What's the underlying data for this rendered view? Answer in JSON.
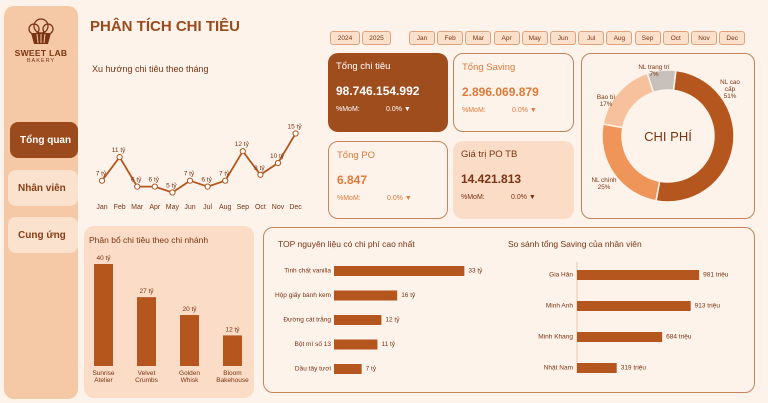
{
  "brand": {
    "name": "SWEET LAB",
    "sub": "BAKERY"
  },
  "nav": [
    {
      "label": "Tổng quan",
      "active": true
    },
    {
      "label": "Nhân viên",
      "active": false
    },
    {
      "label": "Cung ứng",
      "active": false
    }
  ],
  "page_title": "PHÂN TÍCH CHI TIÊU",
  "years": [
    "2024",
    "2025"
  ],
  "months": [
    "Jan",
    "Feb",
    "Mar",
    "Apr",
    "May",
    "Jun",
    "Jul",
    "Aug",
    "Sep",
    "Oct",
    "Nov",
    "Dec"
  ],
  "kpis": {
    "total_spend": {
      "label": "Tổng chi tiêu",
      "value": "98.746.154.992",
      "mom_label": "%MoM:",
      "mom_value": "0.0% ▼"
    },
    "total_saving": {
      "label": "Tổng Saving",
      "value": "2.896.069.879",
      "mom_label": "%MoM:",
      "mom_value": "0.0% ▼"
    },
    "total_po": {
      "label": "Tổng PO",
      "value": "6.847",
      "mom_label": "%MoM:",
      "mom_value": "0.0% ▼"
    },
    "avg_po": {
      "label": "Giá trị PO TB",
      "value": "14.421.813",
      "mom_label": "%MoM:",
      "mom_value": "0.0% ▼"
    }
  },
  "colors": {
    "accent": "#9a4a1c",
    "sidebar": "#f6c9a6",
    "bar": "#b5561e",
    "line": "#b5561e",
    "donut_dark": "#b5561e",
    "donut_mid": "#f0955a",
    "donut_light": "#f6c19c",
    "donut_grey": "#c8c0ba"
  },
  "chart_data": [
    {
      "type": "line",
      "title": "Xu hướng chi tiêu theo tháng",
      "categories": [
        "Jan",
        "Feb",
        "Mar",
        "Apr",
        "May",
        "Jun",
        "Jul",
        "Aug",
        "Sep",
        "Oct",
        "Nov",
        "Dec"
      ],
      "values": [
        7,
        11,
        6,
        6,
        5,
        7,
        6,
        7,
        12,
        8,
        10,
        15
      ],
      "labels": [
        "7 tỷ",
        "11 tỷ",
        "6 tỷ",
        "6 tỷ",
        "5 tỷ",
        "7 tỷ",
        "6 tỷ",
        "7 tỷ",
        "12 tỷ",
        "8 tỷ",
        "10 tỷ",
        "15 tỷ"
      ]
    },
    {
      "type": "pie",
      "title": "CHI PHÍ",
      "slices": [
        {
          "name": "NL cao cấp",
          "value": 51,
          "label": "51%"
        },
        {
          "name": "NL chính",
          "value": 25,
          "label": "25%"
        },
        {
          "name": "Bao bì",
          "value": 17,
          "label": "17%"
        },
        {
          "name": "NL trang trí",
          "value": 7,
          "label": "7%"
        }
      ]
    },
    {
      "type": "bar",
      "title": "Phân bổ chi tiêu theo chi nhánh",
      "categories": [
        "Sunrise Atelier",
        "Velvet Crumbs",
        "Golden Whisk",
        "Bloom Bakehouse"
      ],
      "values": [
        40,
        27,
        20,
        12
      ],
      "labels": [
        "40 tỷ",
        "27 tỷ",
        "20 tỷ",
        "12 tỷ"
      ]
    },
    {
      "type": "bar",
      "orientation": "horizontal",
      "title": "TOP nguyên liệu có chi phí cao nhất",
      "categories": [
        "Tinh chất vanilla",
        "Hộp giấy bánh kem",
        "Đường cát trắng",
        "Bột mì số 13",
        "Dầu tây tươi"
      ],
      "values": [
        33,
        16,
        12,
        11,
        7
      ],
      "labels": [
        "33 tỷ",
        "16 tỷ",
        "12 tỷ",
        "11 tỷ",
        "7 tỷ"
      ]
    },
    {
      "type": "bar",
      "orientation": "horizontal",
      "title": "So sánh tổng Saving của nhân viên",
      "categories": [
        "Gia Hân",
        "Minh Anh",
        "Minh Khang",
        "Nhật Nam"
      ],
      "values": [
        981,
        913,
        684,
        319
      ],
      "labels": [
        "981 triệu",
        "913 triệu",
        "684 triệu",
        "319 triệu"
      ]
    }
  ]
}
